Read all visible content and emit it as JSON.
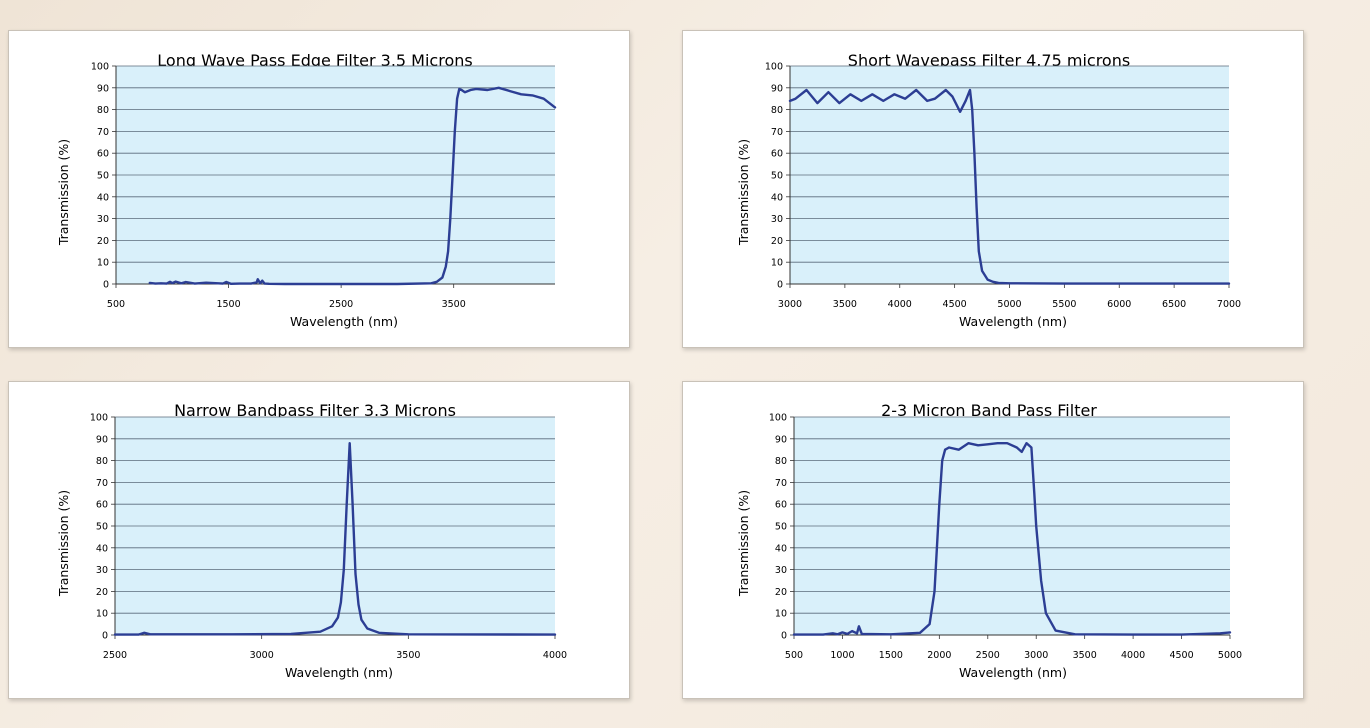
{
  "colors": {
    "plot_bg": "#d9f0fa",
    "grid": "#5a6a7a",
    "line": "#2c3e94"
  },
  "chart_data": [
    {
      "type": "line",
      "title": "Long Wave Pass Edge Filter 3.5 Microns",
      "xlabel": "Wavelength (nm)",
      "ylabel": "Transmission (%)",
      "xlim": [
        500,
        4400
      ],
      "ylim": [
        0,
        100
      ],
      "xticks": [
        500,
        1500,
        2500,
        3500
      ],
      "yticks": [
        0,
        10,
        20,
        30,
        40,
        50,
        60,
        70,
        80,
        90,
        100
      ],
      "grid": true,
      "series": [
        {
          "x": [
            800,
            850,
            900,
            950,
            980,
            1000,
            1030,
            1080,
            1120,
            1200,
            1300,
            1450,
            1480,
            1520,
            1600,
            1700,
            1750,
            1760,
            1780,
            1800,
            1820,
            1860,
            2000,
            2500,
            3000,
            3300,
            3350,
            3400,
            3430,
            3450,
            3470,
            3490,
            3510,
            3530,
            3550,
            3570,
            3600,
            3650,
            3700,
            3800,
            3900,
            4000,
            4100,
            4200,
            4300,
            4400
          ],
          "y": [
            0.5,
            0.2,
            0.3,
            0.2,
            1.0,
            0.4,
            1.1,
            0.3,
            0.9,
            0.2,
            0.6,
            0.2,
            0.9,
            0.1,
            0.2,
            0.2,
            0.8,
            2.2,
            0.3,
            1.5,
            0.2,
            0.1,
            0,
            0,
            0,
            0.3,
            1,
            3,
            8,
            15,
            30,
            50,
            70,
            85,
            89.5,
            89,
            88,
            89,
            89.5,
            89,
            90,
            88.5,
            87,
            86.5,
            85,
            81
          ]
        }
      ]
    },
    {
      "type": "line",
      "title": "Short Wavepass Filter 4.75 microns",
      "xlabel": "Wavelength (nm)",
      "ylabel": "Transmission (%)",
      "xlim": [
        3000,
        7000
      ],
      "ylim": [
        0,
        100
      ],
      "xticks": [
        3000,
        3500,
        4000,
        4500,
        5000,
        5500,
        6000,
        6500,
        7000
      ],
      "yticks": [
        0,
        10,
        20,
        30,
        40,
        50,
        60,
        70,
        80,
        90,
        100
      ],
      "grid": true,
      "series": [
        {
          "x": [
            3000,
            3050,
            3150,
            3250,
            3350,
            3450,
            3550,
            3650,
            3750,
            3850,
            3950,
            4050,
            4150,
            4250,
            4320,
            4420,
            4480,
            4550,
            4600,
            4640,
            4660,
            4680,
            4700,
            4720,
            4750,
            4800,
            4850,
            4900,
            5000,
            5500,
            6000,
            7000
          ],
          "y": [
            84,
            85,
            89,
            83,
            88,
            83,
            87,
            84,
            87,
            84,
            87,
            85,
            89,
            84,
            85,
            89,
            86,
            79,
            84,
            89,
            80,
            60,
            35,
            15,
            6,
            2,
            1,
            0.5,
            0.3,
            0.2,
            0.2,
            0.2
          ]
        }
      ]
    },
    {
      "type": "line",
      "title": "Narrow Bandpass Filter 3.3 Microns",
      "xlabel": "Wavelength (nm)",
      "ylabel": "Transmission (%)",
      "xlim": [
        2500,
        4000
      ],
      "ylim": [
        0,
        100
      ],
      "xticks": [
        2500,
        3000,
        3500,
        4000
      ],
      "yticks": [
        0,
        10,
        20,
        30,
        40,
        50,
        60,
        70,
        80,
        90,
        100
      ],
      "grid": true,
      "series": [
        {
          "x": [
            2500,
            2580,
            2600,
            2620,
            2700,
            2900,
            3100,
            3200,
            3240,
            3260,
            3270,
            3280,
            3290,
            3300,
            3310,
            3320,
            3330,
            3340,
            3360,
            3400,
            3500,
            4000
          ],
          "y": [
            0.2,
            0.2,
            1,
            0.3,
            0.3,
            0.3,
            0.5,
            1.5,
            4,
            8,
            15,
            30,
            60,
            88,
            60,
            28,
            14,
            7,
            3,
            1,
            0.3,
            0.2
          ]
        }
      ]
    },
    {
      "type": "line",
      "title": "2-3 Micron Band Pass Filter",
      "xlabel": "Wavelength (nm)",
      "ylabel": "Transmission (%)",
      "xlim": [
        500,
        5000
      ],
      "ylim": [
        0,
        100
      ],
      "xticks": [
        500,
        1000,
        1500,
        2000,
        2500,
        3000,
        3500,
        4000,
        4500,
        5000
      ],
      "yticks": [
        0,
        10,
        20,
        30,
        40,
        50,
        60,
        70,
        80,
        90,
        100
      ],
      "grid": true,
      "series": [
        {
          "x": [
            500,
            800,
            900,
            950,
            1000,
            1050,
            1100,
            1150,
            1170,
            1200,
            1500,
            1800,
            1900,
            1950,
            2000,
            2030,
            2060,
            2100,
            2200,
            2300,
            2400,
            2500,
            2600,
            2700,
            2800,
            2850,
            2900,
            2950,
            2980,
            3000,
            3050,
            3100,
            3200,
            3400,
            4000,
            4500,
            4900,
            5000
          ],
          "y": [
            0.2,
            0.2,
            0.8,
            0.3,
            1.2,
            0.5,
            1.8,
            0.8,
            4,
            0.5,
            0.3,
            1,
            5,
            20,
            60,
            80,
            85,
            86,
            85,
            88,
            87,
            87.5,
            88,
            88,
            86,
            84,
            88,
            86,
            65,
            50,
            25,
            10,
            2,
            0.3,
            0.2,
            0.2,
            0.8,
            1.2
          ]
        }
      ]
    }
  ]
}
